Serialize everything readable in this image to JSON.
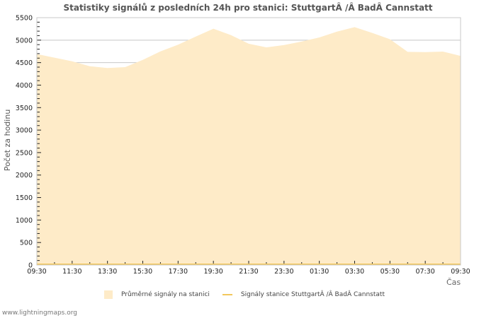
{
  "chart_data": {
    "type": "area",
    "title": "Statistiky signálů z posledních 24h pro stanici: StuttgartÂ /Â BadÂ Cannstatt",
    "xlabel": "Čas",
    "ylabel": "Počet za hodinu",
    "ylim": [
      0,
      5500
    ],
    "yticks": [
      0,
      500,
      1000,
      1500,
      2000,
      2500,
      3000,
      3500,
      4000,
      4500,
      5000,
      5500
    ],
    "xtick_labels": [
      "09:30",
      "11:30",
      "13:30",
      "15:30",
      "17:30",
      "19:30",
      "21:30",
      "23:30",
      "01:30",
      "03:30",
      "05:30",
      "07:30",
      "09:30"
    ],
    "grid": true,
    "legend_position": "bottom",
    "x": [
      "09:30",
      "10:30",
      "11:30",
      "12:30",
      "13:30",
      "14:30",
      "15:30",
      "16:30",
      "17:30",
      "18:30",
      "19:30",
      "20:30",
      "21:30",
      "22:30",
      "23:30",
      "00:30",
      "01:30",
      "02:30",
      "03:30",
      "04:30",
      "05:30",
      "06:30",
      "07:30",
      "08:30",
      "09:30"
    ],
    "series": [
      {
        "name": "Průměrné signály na stanici",
        "kind": "area",
        "color": "#feebc8",
        "values": [
          4690,
          4610,
          4530,
          4420,
          4380,
          4400,
          4560,
          4750,
          4900,
          5080,
          5255,
          5110,
          4920,
          4840,
          4890,
          4970,
          5060,
          5190,
          5290,
          5160,
          5020,
          4740,
          4735,
          4745,
          4650
        ]
      },
      {
        "name": "Signály stanice StuttgartÂ /Â BadÂ Cannstatt",
        "kind": "line",
        "color": "#f2c75c",
        "values": [
          0,
          0,
          0,
          0,
          0,
          0,
          0,
          0,
          0,
          0,
          0,
          0,
          0,
          0,
          0,
          0,
          0,
          0,
          0,
          0,
          0,
          0,
          0,
          0,
          0
        ]
      }
    ]
  },
  "legend": {
    "item1": "Průměrné signály na stanici",
    "item2": "Signály stanice StuttgartÂ /Â BadÂ Cannstatt"
  },
  "footer": "www.lightningmaps.org",
  "colors": {
    "area": "#feebc8",
    "line": "#f2c75c",
    "grid": "#c8c8c8",
    "axis": "#c8c8c8"
  }
}
